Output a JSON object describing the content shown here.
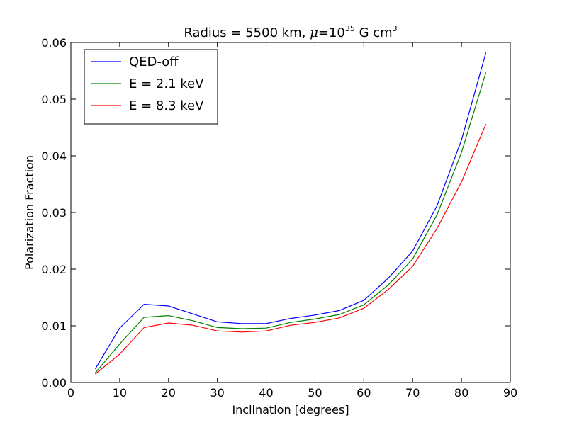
{
  "chart_data": {
    "type": "line",
    "title": {
      "prefix": "Radius = 5500 km, ",
      "mu": "μ",
      "equals": "=",
      "ten": "10",
      "exponent": "35",
      "unit": " G cm",
      "unit_exponent": "3"
    },
    "xlabel": "Inclination [degrees]",
    "ylabel": "Polarization Fraction",
    "xlim": [
      0,
      90
    ],
    "ylim": [
      0,
      0.06
    ],
    "xticks": [
      0,
      10,
      20,
      30,
      40,
      50,
      60,
      70,
      80,
      90
    ],
    "yticks": [
      0.0,
      0.01,
      0.02,
      0.03,
      0.04,
      0.05,
      0.06
    ],
    "xtick_labels": [
      "0",
      "10",
      "20",
      "30",
      "40",
      "50",
      "60",
      "70",
      "80",
      "90"
    ],
    "ytick_labels": [
      "0.00",
      "0.01",
      "0.02",
      "0.03",
      "0.04",
      "0.05",
      "0.06"
    ],
    "grid": false,
    "legend_position": "top-left",
    "x": [
      5,
      10,
      15,
      20,
      25,
      30,
      35,
      40,
      45,
      50,
      55,
      60,
      65,
      70,
      75,
      80,
      85
    ],
    "series": [
      {
        "name": "QED-off",
        "color": "#0000ff",
        "values": [
          0.0024,
          0.0096,
          0.0138,
          0.0135,
          0.0121,
          0.0107,
          0.0104,
          0.0104,
          0.0113,
          0.0119,
          0.0127,
          0.0145,
          0.0184,
          0.0232,
          0.0312,
          0.0428,
          0.0582
        ]
      },
      {
        "name": "E = 2.1 keV",
        "color": "#008000",
        "values": [
          0.0017,
          0.0068,
          0.0115,
          0.0118,
          0.0109,
          0.0097,
          0.0095,
          0.0096,
          0.0106,
          0.0112,
          0.012,
          0.0137,
          0.0172,
          0.0218,
          0.0296,
          0.0406,
          0.0547
        ]
      },
      {
        "name": "E = 8.3 keV",
        "color": "#ff0000",
        "values": [
          0.0015,
          0.005,
          0.0097,
          0.0105,
          0.0101,
          0.0091,
          0.0089,
          0.0091,
          0.0101,
          0.0106,
          0.0114,
          0.0131,
          0.0164,
          0.0205,
          0.0272,
          0.0354,
          0.0456
        ]
      }
    ]
  }
}
